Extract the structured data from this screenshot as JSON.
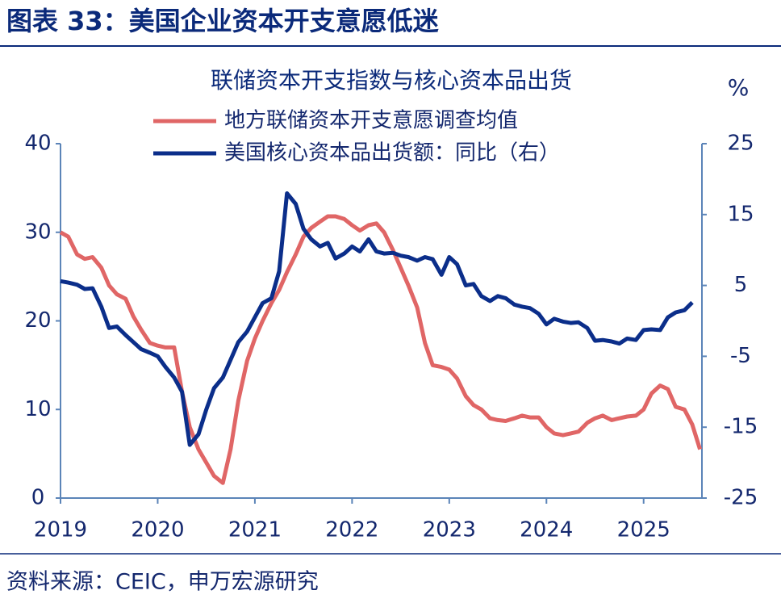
{
  "header": {
    "title": "图表 33：美国企业资本开支意愿低迷"
  },
  "chart_data": {
    "type": "line",
    "title": "联储资本开支指数与核心资本品出货",
    "y2_label": "%",
    "x": [
      2019,
      2019.08,
      2019.17,
      2019.25,
      2019.33,
      2019.42,
      2019.5,
      2019.58,
      2019.67,
      2019.75,
      2019.83,
      2019.92,
      2020,
      2020.08,
      2020.17,
      2020.25,
      2020.33,
      2020.42,
      2020.5,
      2020.58,
      2020.67,
      2020.75,
      2020.83,
      2020.92,
      2021,
      2021.08,
      2021.17,
      2021.25,
      2021.33,
      2021.42,
      2021.5,
      2021.58,
      2021.67,
      2021.75,
      2021.83,
      2021.92,
      2022,
      2022.08,
      2022.17,
      2022.25,
      2022.33,
      2022.42,
      2022.5,
      2022.58,
      2022.67,
      2022.75,
      2022.83,
      2022.92,
      2023,
      2023.08,
      2023.17,
      2023.25,
      2023.33,
      2023.42,
      2023.5,
      2023.58,
      2023.67,
      2023.75,
      2023.83,
      2023.92,
      2024,
      2024.08,
      2024.17,
      2024.25,
      2024.33,
      2024.42,
      2024.5,
      2024.58,
      2024.67,
      2024.75,
      2024.83,
      2024.92,
      2025,
      2025.08,
      2025.17,
      2025.25,
      2025.33,
      2025.42,
      2025.5,
      2025.58
    ],
    "series": [
      {
        "name": "地方联储资本开支意愿调查均值",
        "color": "#e06666",
        "axis": "y",
        "values": [
          30,
          29.5,
          27.5,
          27,
          27.2,
          26,
          24,
          23,
          22.5,
          20.5,
          19,
          17.5,
          17.2,
          17,
          17,
          12,
          8,
          5.5,
          4,
          2.5,
          1.7,
          5.5,
          11,
          15.5,
          18,
          20,
          22,
          23.5,
          25.5,
          27.5,
          29.5,
          30.5,
          31.2,
          31.8,
          31.8,
          31.5,
          30.8,
          30.2,
          30.8,
          31,
          30,
          28,
          26,
          24,
          21.5,
          17.5,
          15,
          14.8,
          14.5,
          13.5,
          11.5,
          10.5,
          10,
          9,
          8.8,
          8.7,
          9,
          9.3,
          9.1,
          9.1,
          8,
          7.3,
          7.1,
          7.3,
          7.5,
          8.5,
          9,
          9.3,
          8.8,
          9,
          9.2,
          9.3,
          10,
          11.8,
          12.7,
          12.3,
          10.3,
          10,
          8.3,
          5.5
        ]
      },
      {
        "name": "美国核心资本品出货额：同比（右）",
        "color": "#0b2e8a",
        "axis": "y2",
        "values": [
          5.6,
          5.4,
          5.1,
          4.5,
          4.6,
          2,
          -1,
          -0.8,
          -2,
          -3,
          -4,
          -4.5,
          -5,
          -6.5,
          -8,
          -10,
          -17.5,
          -16,
          -12.5,
          -9.5,
          -8,
          -5.5,
          -3,
          -1.5,
          0.5,
          2.5,
          3.2,
          7,
          18,
          16.5,
          13,
          11.5,
          10.5,
          11,
          8.8,
          9.5,
          10.5,
          9.8,
          11.5,
          9.8,
          9.5,
          9.6,
          9.2,
          9,
          8.5,
          9,
          8.7,
          6.5,
          9,
          8,
          5,
          5.2,
          3.5,
          2.8,
          3.5,
          3.2,
          2.3,
          2,
          1.8,
          1,
          -0.5,
          0.3,
          -0.1,
          -0.3,
          -0.2,
          -1,
          -2.8,
          -2.7,
          -2.9,
          -3.2,
          -2.5,
          -2.7,
          -1.3,
          -1.2,
          -1.3,
          0.5,
          1.2,
          1.5,
          2.6,
          null
        ]
      }
    ],
    "xlim": [
      2019,
      2025.6
    ],
    "xticks": [
      2019,
      2020,
      2021,
      2022,
      2023,
      2024,
      2025
    ],
    "ylim": [
      0,
      40
    ],
    "yticks": [
      0,
      10,
      20,
      30,
      40
    ],
    "y2lim": [
      -25,
      25
    ],
    "y2ticks": [
      -25,
      -15,
      -5,
      5,
      15,
      25
    ],
    "grid": false,
    "legend": "top"
  },
  "footer": {
    "source": "资料来源：CEIC，申万宏源研究"
  }
}
